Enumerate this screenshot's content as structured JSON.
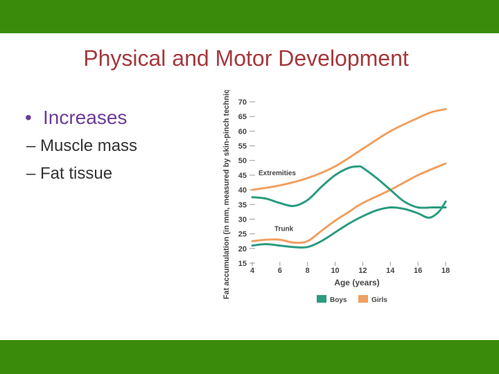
{
  "colors": {
    "band": "#3a8a0b",
    "title": "#a5383d",
    "bullet": "#6e3c97",
    "text": "#333333",
    "boys": "#2a9c80",
    "girls": "#f0a060",
    "axis": "#444444"
  },
  "slide": {
    "title": "Physical and Motor Development",
    "bullet": "Increases",
    "sub_items": [
      "– Muscle mass",
      "– Fat tissue"
    ]
  },
  "chart_data": {
    "type": "line",
    "ylabel": "Fat accumulation (in mm, measured by skin-pinch technique)",
    "xlabel": "Age (years)",
    "x_ticks": [
      4,
      6,
      8,
      10,
      12,
      14,
      16,
      18
    ],
    "y_ticks": [
      15,
      20,
      25,
      30,
      35,
      40,
      45,
      50,
      55,
      60,
      65,
      70
    ],
    "xlim": [
      4,
      18
    ],
    "ylim": [
      15,
      70
    ],
    "annotations": [
      "Extremities",
      "Trunk"
    ],
    "legend": [
      "Boys",
      "Girls"
    ],
    "series": [
      {
        "name": "Boys",
        "group": "Extremities",
        "x": [
          4,
          5,
          6,
          7,
          8,
          9,
          10,
          11,
          11.7,
          12,
          13,
          14,
          15,
          16,
          17,
          18
        ],
        "values": [
          37.5,
          37,
          35.5,
          34.5,
          36.5,
          41,
          45,
          47.5,
          48,
          47.5,
          44,
          40,
          36,
          34,
          34,
          34
        ]
      },
      {
        "name": "Girls",
        "group": "Extremities",
        "x": [
          4,
          6,
          8,
          10,
          12,
          14,
          16,
          17,
          18
        ],
        "values": [
          40,
          41.5,
          44,
          48,
          54,
          60,
          64.5,
          66.5,
          67.5
        ]
      },
      {
        "name": "Boys",
        "group": "Trunk",
        "x": [
          4,
          5,
          6,
          7,
          8,
          9,
          10,
          11,
          12,
          13,
          14,
          15,
          16,
          16.8,
          17.5,
          18
        ],
        "values": [
          21,
          21.5,
          21,
          20.5,
          20.5,
          22.5,
          25.5,
          28.5,
          31,
          33,
          34,
          33.5,
          32,
          30.5,
          32.5,
          36
        ]
      },
      {
        "name": "Girls",
        "group": "Trunk",
        "x": [
          4,
          5,
          6,
          7,
          8,
          9,
          10,
          11,
          12,
          14,
          16,
          18
        ],
        "values": [
          22.5,
          23,
          23,
          22,
          22.5,
          26,
          29.5,
          32.5,
          35.5,
          40,
          45,
          49
        ]
      }
    ]
  }
}
